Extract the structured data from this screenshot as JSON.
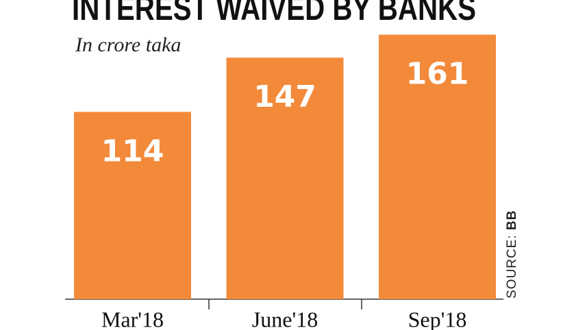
{
  "chart_data": {
    "type": "bar",
    "title": "INTEREST WAIVED BY BANKS",
    "subtitle": "In crore taka",
    "categories": [
      "Mar'18",
      "June'18",
      "Sep'18"
    ],
    "values": [
      114,
      147,
      161
    ],
    "color": "#f28a3a",
    "source_label": "SOURCE:",
    "source": "BB"
  }
}
